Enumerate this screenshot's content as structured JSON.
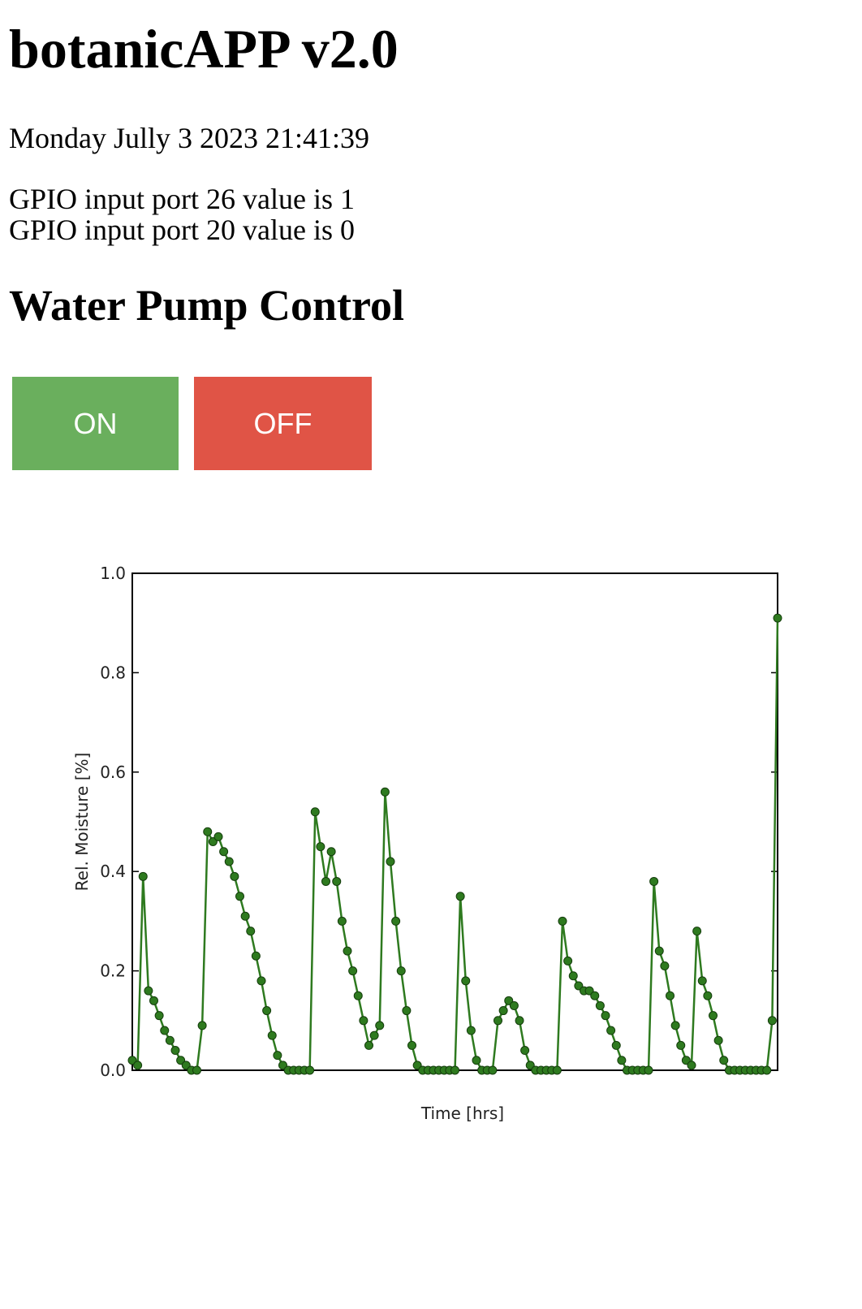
{
  "page": {
    "title": "botanicAPP v2.0",
    "datetime": "Monday Jully 3 2023 21:41:39",
    "gpio": [
      "GPIO input port 26 value is 1",
      "GPIO input port 20 value is 0"
    ],
    "section_title": "Water Pump Control",
    "buttons": [
      "ON",
      "OFF"
    ]
  },
  "chart_data": {
    "type": "line",
    "xlabel": "Time [hrs]",
    "ylabel": "Rel. Moisture [%]",
    "ylim": [
      0,
      1
    ],
    "yticks": [
      {
        "value": 0,
        "label": "0.0"
      },
      0.2,
      0.4,
      0.6,
      0.8,
      {
        "value": 1,
        "label": "1.0"
      }
    ],
    "series": [
      {
        "color": "#2e7a1f",
        "values": [
          0.02,
          0.01,
          0.39,
          0.16,
          0.14,
          0.11,
          0.08,
          0.06,
          0.04,
          0.02,
          0.01,
          0,
          0,
          0.09,
          0.48,
          0.46,
          0.47,
          0.44,
          0.42,
          0.39,
          0.35,
          0.31,
          0.28,
          0.23,
          0.18,
          0.12,
          0.07,
          0.03,
          0.01,
          0,
          0,
          0,
          0,
          0,
          0.52,
          0.45,
          0.38,
          0.44,
          0.38,
          0.3,
          0.24,
          0.2,
          0.15,
          0.1,
          0.05,
          0.07,
          0.09,
          0.56,
          0.42,
          0.3,
          0.2,
          0.12,
          0.05,
          0.01,
          0,
          0,
          0,
          0,
          0,
          0,
          0,
          0.35,
          0.18,
          0.08,
          0.02,
          0,
          0,
          0,
          0.1,
          0.12,
          0.14,
          0.13,
          0.1,
          0.04,
          0.01,
          0,
          0,
          0,
          0,
          0,
          0.3,
          0.22,
          0.19,
          0.17,
          0.16,
          0.16,
          0.15,
          0.13,
          0.11,
          0.08,
          0.05,
          0.02,
          0,
          0,
          0,
          0,
          0,
          0.38,
          0.24,
          0.21,
          0.15,
          0.09,
          0.05,
          0.02,
          0.01,
          0.28,
          0.18,
          0.15,
          0.11,
          0.06,
          0.02,
          0,
          0,
          0,
          0,
          0,
          0,
          0,
          0,
          0.1,
          0.91
        ]
      }
    ]
  }
}
